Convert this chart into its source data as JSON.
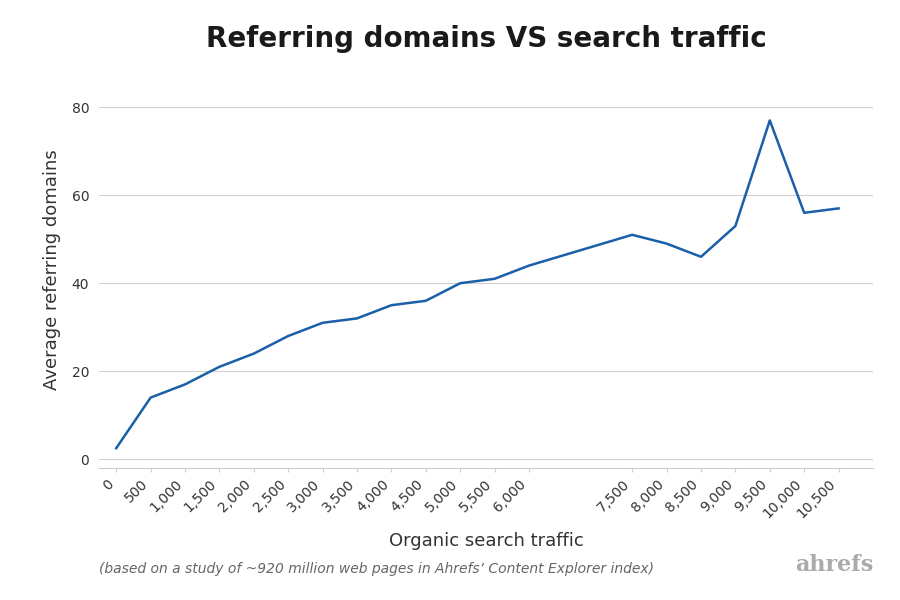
{
  "title": "Referring domains VS search traffic",
  "xlabel": "Organic search traffic",
  "ylabel": "Average referring domains",
  "footnote": "(based on a study of ~920 million web pages in Ahrefs’ Content Explorer index)",
  "ahrefs_label": "ahrefs",
  "x": [
    0,
    500,
    1000,
    1500,
    2000,
    2500,
    3000,
    3500,
    4000,
    4500,
    5000,
    5500,
    6000,
    7500,
    8000,
    8500,
    9000,
    9500,
    10000,
    10500
  ],
  "y": [
    2.5,
    14,
    17,
    21,
    24,
    28,
    31,
    32,
    35,
    36,
    40,
    41,
    44,
    51,
    49,
    46,
    53,
    77,
    56,
    57
  ],
  "line_color": "#1a5fa8",
  "line_width": 1.8,
  "background_color": "#ffffff",
  "grid_color": "#d0d0d0",
  "ylim": [
    -2,
    88
  ],
  "xlim": [
    -250,
    11000
  ],
  "yticks": [
    0,
    20,
    40,
    60,
    80
  ],
  "xticks": [
    0,
    500,
    1000,
    1500,
    2000,
    2500,
    3000,
    3500,
    4000,
    4500,
    5000,
    5500,
    6000,
    7500,
    8000,
    8500,
    9000,
    9500,
    10000,
    10500
  ],
  "title_fontsize": 20,
  "label_fontsize": 13,
  "tick_fontsize": 10,
  "footnote_fontsize": 10,
  "ahrefs_fontsize": 16,
  "axis_color": "#cccccc",
  "text_color": "#333333",
  "footnote_color": "#666666",
  "ahrefs_color": "#aaaaaa"
}
